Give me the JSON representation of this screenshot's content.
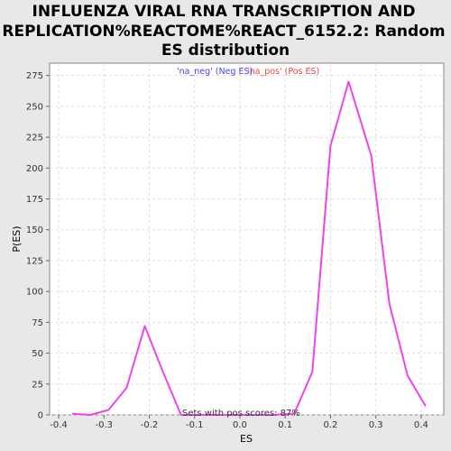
{
  "chart_data": {
    "type": "line",
    "title_lines": [
      "INFLUENZA VIRAL RNA TRANSCRIPTION AND",
      "REPLICATION%REACTOME%REACT_6152.2: Random",
      "ES distribution"
    ],
    "xlabel": "ES",
    "ylabel": "P(ES)",
    "xlim": [
      -0.42,
      0.45
    ],
    "ylim": [
      0,
      285
    ],
    "x_ticks": [
      "-0.4",
      "-0.3",
      "-0.2",
      "-0.1",
      "0.0",
      "0.1",
      "0.2",
      "0.3",
      "0.4"
    ],
    "x_tick_values": [
      -0.4,
      -0.3,
      -0.2,
      -0.1,
      0.0,
      0.1,
      0.2,
      0.3,
      0.4
    ],
    "y_ticks": [
      "0",
      "25",
      "50",
      "75",
      "100",
      "125",
      "150",
      "175",
      "200",
      "225",
      "250",
      "275"
    ],
    "y_tick_values": [
      0,
      25,
      50,
      75,
      100,
      125,
      150,
      175,
      200,
      225,
      250,
      275
    ],
    "grid": true,
    "legend": {
      "placement": "top-center",
      "entries": [
        {
          "label": "'na_neg' (Neg ES)",
          "color": "#4444ee"
        },
        {
          "label": "'na_pos' (Pos ES)",
          "color": "#ee4444"
        }
      ]
    },
    "annotation": "Sets with pos scores: 87%",
    "series": [
      {
        "color": "#ee44ee",
        "x": [
          -0.37,
          -0.33,
          -0.29,
          -0.25,
          -0.21,
          -0.17,
          -0.13,
          -0.09,
          -0.05,
          -0.01,
          0.03,
          0.07,
          0.12,
          0.16,
          0.2,
          0.24,
          0.29,
          0.33,
          0.37,
          0.41
        ],
        "y": [
          1,
          0,
          4,
          22,
          72,
          35,
          0,
          0,
          0,
          0,
          0,
          0,
          1,
          35,
          218,
          270,
          210,
          90,
          32,
          7
        ]
      }
    ]
  }
}
